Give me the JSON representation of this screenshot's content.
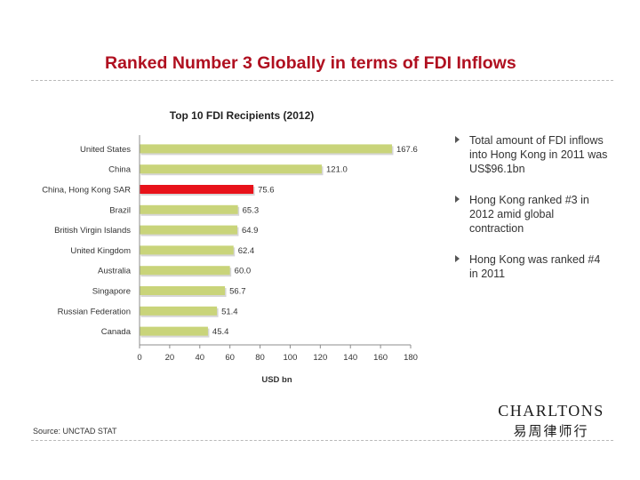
{
  "slide": {
    "title": "Ranked Number 3 Globally in terms of FDI Inflows",
    "source": "Source: UNCTAD STAT"
  },
  "bullets": [
    "Total amount of FDI inflows into Hong Kong in 2011 was US$96.1bn",
    "Hong Kong ranked #3 in 2012 amid global contraction",
    "Hong Kong was ranked #4 in 2011"
  ],
  "logo": {
    "name_en": "CHARLTONS",
    "name_zh": "易周律师行"
  },
  "colors": {
    "title": "#b01020",
    "bar": "#c9d47a",
    "highlight": "#e8121a"
  },
  "chart_data": {
    "type": "bar",
    "orientation": "horizontal",
    "title": "Top 10 FDI Recipients (2012)",
    "categories": [
      "United States",
      "China",
      "China, Hong Kong SAR",
      "Brazil",
      "British Virgin Islands",
      "United Kingdom",
      "Australia",
      "Singapore",
      "Russian Federation",
      "Canada"
    ],
    "values": [
      167.6,
      121.0,
      75.6,
      65.3,
      64.9,
      62.4,
      60.0,
      56.7,
      51.4,
      45.4
    ],
    "value_labels": [
      "167.6",
      "121.0",
      "75.6",
      "65.3",
      "64.9",
      "62.4",
      "60.0",
      "56.7",
      "51.4",
      "45.4"
    ],
    "highlight_index": 2,
    "xlabel": "USD bn",
    "ylabel": "",
    "xlim": [
      0,
      180
    ],
    "xticks": [
      0,
      20,
      40,
      60,
      80,
      100,
      120,
      140,
      160,
      180
    ],
    "grid": false,
    "legend": false
  }
}
